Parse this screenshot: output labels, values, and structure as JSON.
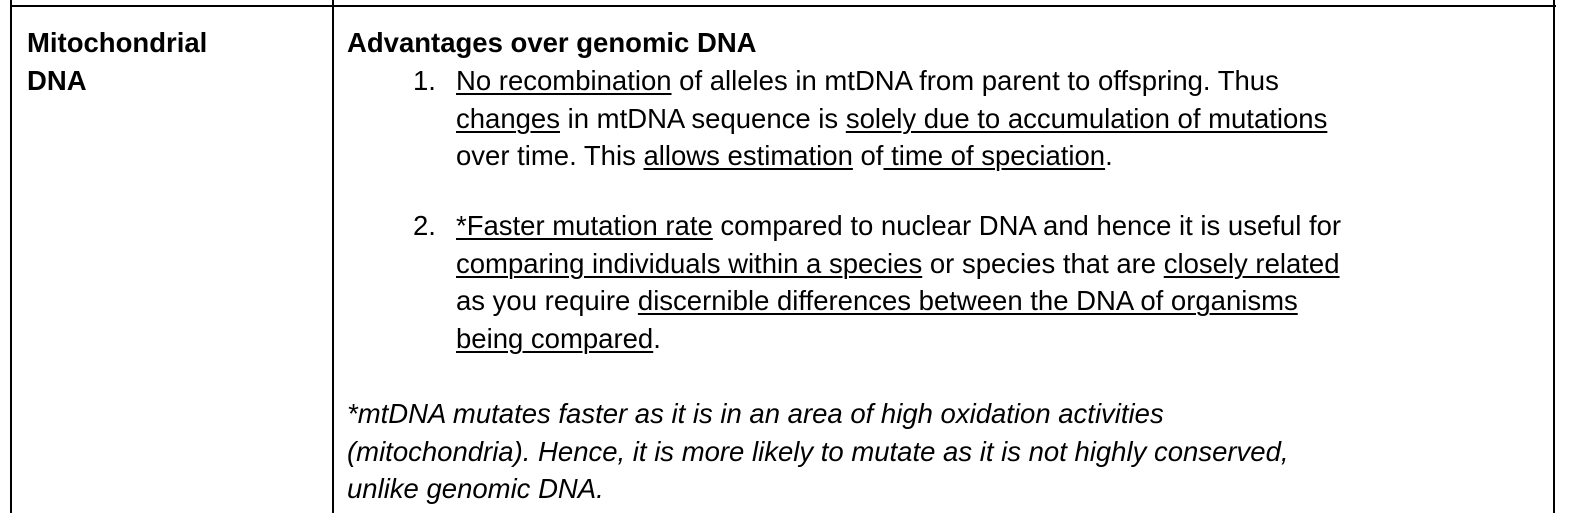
{
  "row_label": [
    "Mitochondrial",
    "DNA"
  ],
  "heading": "Advantages over genomic DNA",
  "items": [
    {
      "number": "1.",
      "lines": [
        [
          {
            "t": "No recombination",
            "u": true
          },
          {
            "t": " of alleles in mtDNA from parent to offspring. Thus",
            "u": false
          }
        ],
        [
          {
            "t": "changes",
            "u": true
          },
          {
            "t": " in mtDNA sequence is ",
            "u": false
          },
          {
            "t": "solely due to accumulation of mutations",
            "u": true
          }
        ],
        [
          {
            "t": "over time. This ",
            "u": false
          },
          {
            "t": "allows estimation",
            "u": true
          },
          {
            "t": " of",
            "u": false
          },
          {
            "t": " time of speciation",
            "u": true
          },
          {
            "t": ".",
            "u": false
          }
        ]
      ]
    },
    {
      "number": "2.",
      "lines": [
        [
          {
            "t": "*Faster mutation rate",
            "u": true
          },
          {
            "t": " compared to nuclear DNA and hence it is useful for",
            "u": false
          }
        ],
        [
          {
            "t": "comparing individuals within a species",
            "u": true
          },
          {
            "t": " or species that are ",
            "u": false
          },
          {
            "t": "closely related",
            "u": true
          }
        ],
        [
          {
            "t": "as you require ",
            "u": false
          },
          {
            "t": "discernible differences between the DNA of organisms",
            "u": true
          }
        ],
        [
          {
            "t": "being compared",
            "u": true
          },
          {
            "t": ".",
            "u": false
          }
        ]
      ]
    }
  ],
  "footnote": [
    "*mtDNA mutates faster as it is in an area of high oxidation activities",
    "(mitochondria). Hence, it is more likely to mutate as it is not highly conserved,",
    "unlike genomic DNA."
  ]
}
